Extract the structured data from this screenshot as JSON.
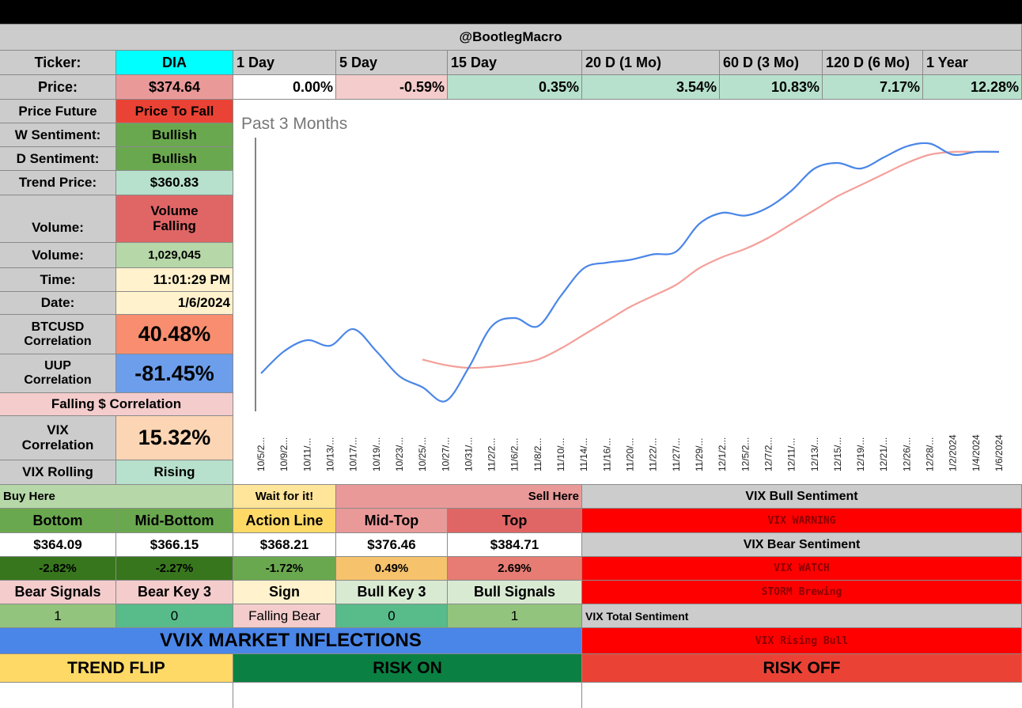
{
  "header": {
    "title": "@BootlegMacro"
  },
  "ticker": {
    "label": "Ticker:",
    "value": "DIA"
  },
  "periods": [
    {
      "label": "1 Day",
      "value": "0.00%"
    },
    {
      "label": "5 Day",
      "value": "-0.59%"
    },
    {
      "label": "15 Day",
      "value": "0.35%"
    },
    {
      "label": "20 D (1 Mo)",
      "value": "3.54%"
    },
    {
      "label": "60 D (3 Mo)",
      "value": "10.83%"
    },
    {
      "label": "120 D (6 Mo)",
      "value": "7.17%"
    },
    {
      "label": "1 Year",
      "value": "12.28%"
    }
  ],
  "price": {
    "label": "Price:",
    "value": "$374.64"
  },
  "left_panel": {
    "price_future": {
      "label": "Price Future",
      "value": "Price To Fall"
    },
    "w_sentiment": {
      "label": "W Sentiment:",
      "value": "Bullish"
    },
    "d_sentiment": {
      "label": "D Sentiment:",
      "value": "Bullish"
    },
    "trend_price": {
      "label": "Trend Price:",
      "value": "$360.83"
    },
    "volume_trend": {
      "label": "Volume:",
      "value": "Volume Falling"
    },
    "volume": {
      "label": "Volume:",
      "value": "1,029,045"
    },
    "time": {
      "label": "Time:",
      "value": "11:01:29 PM"
    },
    "date": {
      "label": "Date:",
      "value": "1/6/2024"
    },
    "btc_corr": {
      "label": "BTCUSD Correlation",
      "value": "40.48%"
    },
    "uup_corr": {
      "label": "UUP Correlation",
      "value": "-81.45%"
    },
    "falling_corr": "Falling $ Correlation",
    "vix_corr": {
      "label": "VIX Correlation",
      "value": "15.32%"
    },
    "vix_rolling": {
      "label": "VIX Rolling",
      "value": "Rising"
    }
  },
  "chart_data": {
    "type": "line",
    "title": "Past 3 Months",
    "x": [
      "10/5/2...",
      "10/9/2...",
      "10/11/...",
      "10/13/...",
      "10/17/...",
      "10/19/...",
      "10/23/...",
      "10/25/...",
      "10/27/...",
      "10/31/...",
      "11/2/2...",
      "11/6/2...",
      "11/8/2...",
      "11/10/...",
      "11/14/...",
      "11/16/...",
      "11/20/...",
      "11/22/...",
      "11/27/...",
      "11/29/...",
      "12/1/2...",
      "12/5/2...",
      "12/7/2...",
      "12/11/...",
      "12/13/...",
      "12/15/...",
      "12/19/...",
      "12/21/...",
      "12/26/...",
      "12/28/...",
      "1/2/2024",
      "1/4/2024",
      "1/6/2024"
    ],
    "series": [
      {
        "values": [
          337,
          341,
          343,
          342,
          345,
          341,
          336.5,
          334.5,
          332,
          338,
          345.5,
          347,
          345.5,
          351,
          356,
          357,
          357.5,
          358.5,
          359,
          364,
          366,
          365.5,
          367,
          370,
          374,
          375,
          374,
          376,
          378,
          378.5,
          376.5,
          377,
          377
        ],
        "color": "#4a86e8"
      },
      {
        "values": [
          null,
          null,
          null,
          null,
          null,
          null,
          null,
          339.5,
          338.5,
          338,
          338.2,
          338.7,
          339.5,
          341.5,
          344,
          346.5,
          349,
          351,
          353,
          356,
          358,
          359.5,
          361.5,
          364,
          366.5,
          369,
          371,
          373,
          375,
          376.5,
          377,
          377,
          377
        ],
        "color": "#f4a09a"
      }
    ],
    "ylim": [
      330,
      380
    ],
    "grid": false
  },
  "levels": {
    "buy_here": "Buy Here",
    "wait": "Wait for it!",
    "sell_here": "Sell Here",
    "names": [
      "Bottom",
      "Mid-Bottom",
      "Action Line",
      "Mid-Top",
      "Top"
    ],
    "prices": [
      "$364.09",
      "$366.15",
      "$368.21",
      "$376.46",
      "$384.71"
    ],
    "pcts": [
      "-2.82%",
      "-2.27%",
      "-1.72%",
      "0.49%",
      "2.69%"
    ]
  },
  "signals": {
    "labels": [
      "Bear Signals",
      "Bear Key 3",
      "Sign",
      "Bull Key 3",
      "Bull Signals"
    ],
    "values": [
      "1",
      "0",
      "Falling Bear",
      "0",
      "1"
    ]
  },
  "vix": {
    "bull_sentiment": "VIX Bull Sentiment",
    "bull_value": "VIX WARNING",
    "bear_sentiment": "VIX Bear Sentiment",
    "bear_value_1": "VIX WATCH",
    "bear_value_2": "STORM Brewing",
    "total_sentiment": "VIX Total Sentiment",
    "total_value": "VIX Rising Bull"
  },
  "vvix": {
    "title": "VVIX MARKET INFLECTIONS"
  },
  "footer": {
    "trend_flip": "TREND FLIP",
    "risk_on": "RISK ON",
    "risk_off": "RISK OFF"
  },
  "colors": {
    "gray": "#cccccc",
    "cyan": "#00ffff",
    "red": "#ff0000",
    "green": "#6aa84f",
    "pink": "#f4cccc",
    "mint": "#b7e1cd",
    "blue": "#4a86e8",
    "dark_green": "#0b8043",
    "yellow": "#ffd966",
    "risk_off": "#ea4335"
  }
}
